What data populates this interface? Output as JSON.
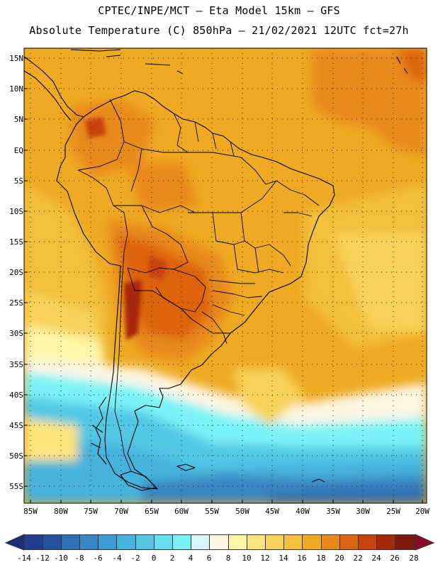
{
  "header": {
    "line1": "CPTEC/INPE/MCT –  Eta Model 15km – GFS",
    "line2": "Absolute Temperature (C) 850hPa – 21/02/2021 12UTC fct=27h"
  },
  "map": {
    "lat_labels": [
      "15N",
      "10N",
      "5N",
      "EQ",
      "5S",
      "10S",
      "15S",
      "20S",
      "25S",
      "30S",
      "35S",
      "40S",
      "45S",
      "50S",
      "55S"
    ],
    "lon_labels": [
      "85W",
      "80W",
      "75W",
      "70W",
      "65W",
      "60W",
      "55W",
      "50W",
      "45W",
      "40W",
      "35W",
      "30W",
      "25W",
      "20W"
    ]
  },
  "colorbar": {
    "labels": [
      "-14",
      "-12",
      "-10",
      "-8",
      "-6",
      "-4",
      "-2",
      "0",
      "2",
      "4",
      "6",
      "8",
      "10",
      "12",
      "14",
      "16",
      "18",
      "20",
      "22",
      "24",
      "26",
      "28"
    ],
    "colors": [
      "#1f3f8f",
      "#2553a0",
      "#2f6fb3",
      "#3a86c2",
      "#3f9cd0",
      "#46b3dc",
      "#52c8e4",
      "#63dfee",
      "#7af3f8",
      "#d6f6fb",
      "#fdf6e3",
      "#fff6a8",
      "#fde47a",
      "#f8d35a",
      "#f2c03e",
      "#eeaa22",
      "#e88a1a",
      "#dd6410",
      "#c8420e",
      "#a8280c",
      "#7e1a0c"
    ],
    "under_color": "#1b2f7a",
    "over_color": "#8a0a2a"
  }
}
